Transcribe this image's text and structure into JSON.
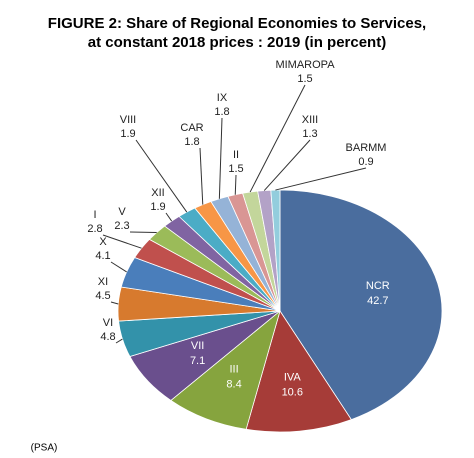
{
  "chart_data": {
    "type": "pie",
    "title": "FIGURE 2:  Share of Regional Economies to Services,",
    "subtitle": "at constant 2018 prices : 2019 (in percent)",
    "source": "(PSA)",
    "categories": [
      "NCR",
      "IVA",
      "III",
      "VII",
      "VI",
      "XI",
      "X",
      "I",
      "V",
      "XII",
      "VIII",
      "CAR",
      "IX",
      "II",
      "MIMAROPA",
      "XIII",
      "BARMM"
    ],
    "values": [
      42.7,
      10.6,
      8.4,
      7.1,
      4.8,
      4.5,
      4.1,
      2.8,
      2.3,
      1.9,
      1.9,
      1.8,
      1.8,
      1.5,
      1.5,
      1.3,
      0.9
    ],
    "colors": [
      "#4a6d9e",
      "#a63c38",
      "#86a43e",
      "#6a4f8d",
      "#3392aa",
      "#d77a2e",
      "#4a7ebb",
      "#c0504d",
      "#9bbb59",
      "#8064a2",
      "#4bacc6",
      "#f79646",
      "#95b3d7",
      "#d99694",
      "#c3d69b",
      "#b3a2c7",
      "#93cddd"
    ]
  }
}
